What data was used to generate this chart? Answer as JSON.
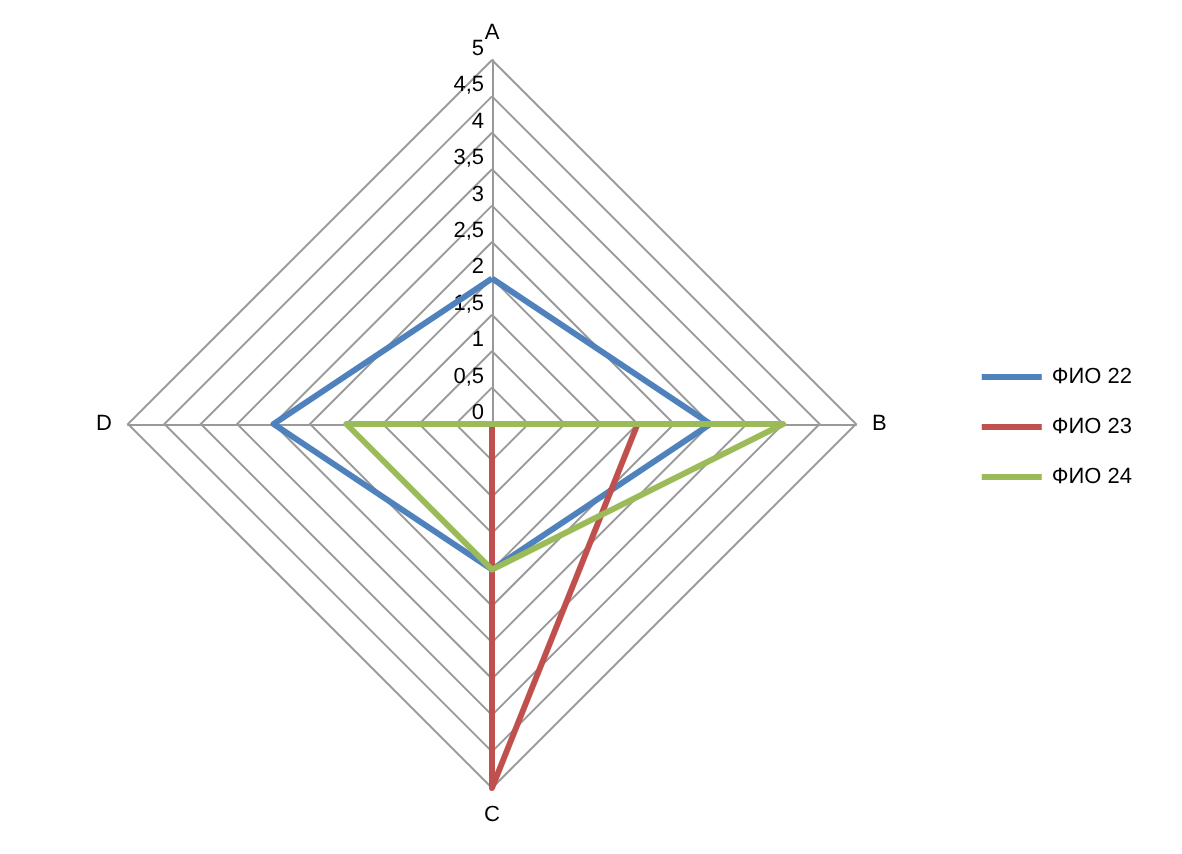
{
  "chart_data": {
    "type": "radar",
    "categories": [
      "A",
      "B",
      "C",
      "D"
    ],
    "series": [
      {
        "name": "ФИО 22",
        "color": "#4f81bd",
        "values": [
          2,
          3,
          2,
          3
        ]
      },
      {
        "name": "ФИО 23",
        "color": "#c0504d",
        "values": [
          0,
          2,
          5,
          0
        ]
      },
      {
        "name": "ФИО 24",
        "color": "#9bbb59",
        "values": [
          0,
          4,
          2,
          2
        ]
      }
    ],
    "ylim": [
      0,
      5
    ],
    "yticks": [
      0,
      {
        "value": 0.5,
        "label": "0,5"
      },
      1,
      {
        "value": 1.5,
        "label": "1,5"
      },
      2,
      {
        "value": 2.5,
        "label": "2,5"
      },
      3,
      {
        "value": 3.5,
        "label": "3,5"
      },
      4,
      {
        "value": 4.5,
        "label": "4,5"
      },
      5
    ],
    "grid": true,
    "legend": "right",
    "marker": "none",
    "line_style": "solid"
  }
}
